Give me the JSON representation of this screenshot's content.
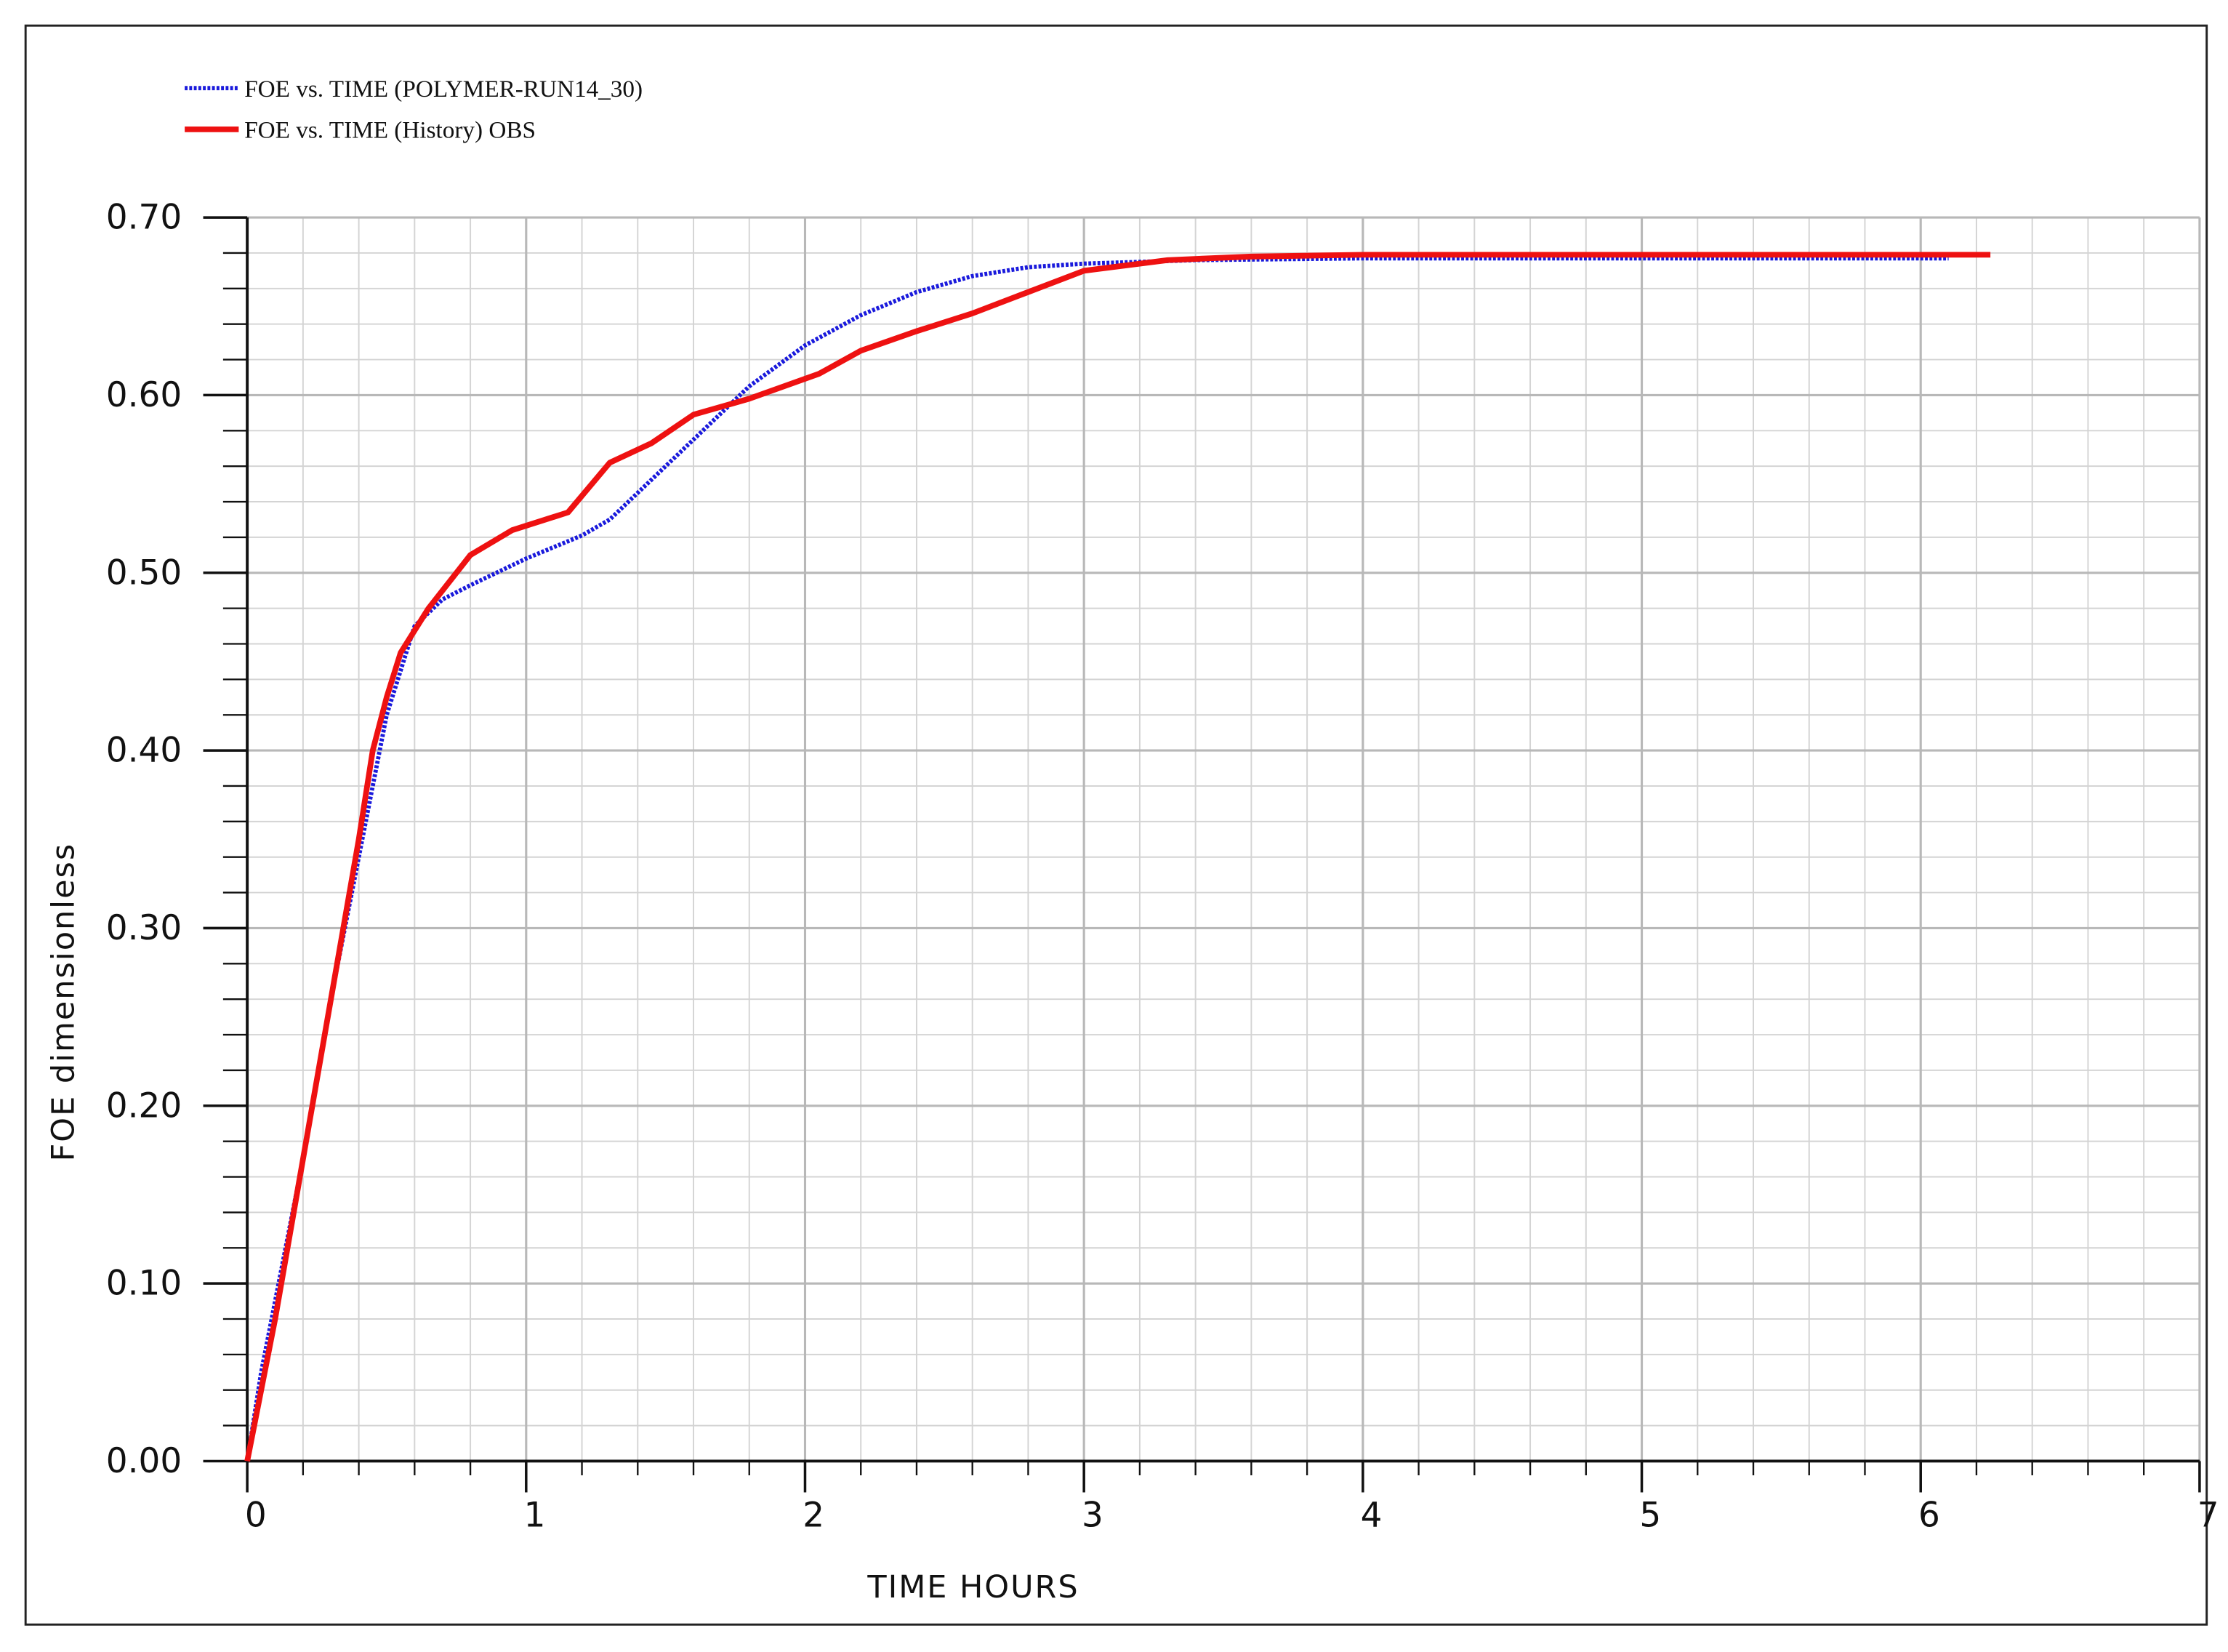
{
  "chart_data": {
    "type": "line",
    "x_label": "TIME  HOURS",
    "y_label": "FOE  dimensionless",
    "xlim": [
      0,
      7
    ],
    "xticks": [
      0,
      1,
      2,
      3,
      4,
      5,
      6,
      7
    ],
    "ylim": [
      0,
      0.7
    ],
    "yticks": [
      {
        "value": 0,
        "label": "0.00"
      },
      {
        "value": 0.1,
        "label": "0.10"
      },
      {
        "value": 0.2,
        "label": "0.20"
      },
      {
        "value": 0.3,
        "label": "0.30"
      },
      {
        "value": 0.4,
        "label": "0.40"
      },
      {
        "value": 0.5,
        "label": "0.50"
      },
      {
        "value": 0.6,
        "label": "0.60"
      },
      {
        "value": 0.7,
        "label": "0.70"
      }
    ],
    "grid": true,
    "legend": "top-left",
    "series": [
      {
        "name": "FOE vs. TIME (POLYMER-RUN14_30)",
        "color": "#1a1adc",
        "style": "dotted",
        "x": [
          0,
          0.05,
          0.1,
          0.2,
          0.3,
          0.4,
          0.5,
          0.6,
          0.7,
          0.8,
          1.0,
          1.2,
          1.3,
          1.4,
          1.6,
          1.8,
          2.0,
          2.2,
          2.4,
          2.6,
          2.8,
          3.0,
          3.4,
          4.0,
          5.0,
          6.1
        ],
        "values": [
          0,
          0.05,
          0.09,
          0.17,
          0.26,
          0.34,
          0.42,
          0.47,
          0.485,
          0.493,
          0.508,
          0.521,
          0.53,
          0.545,
          0.575,
          0.605,
          0.628,
          0.645,
          0.658,
          0.667,
          0.672,
          0.674,
          0.676,
          0.677,
          0.677,
          0.677
        ]
      },
      {
        "name": "FOE vs. TIME (History) OBS",
        "color": "#ee1111",
        "style": "solid",
        "x": [
          0,
          0.1,
          0.2,
          0.3,
          0.4,
          0.45,
          0.5,
          0.55,
          0.65,
          0.8,
          0.95,
          1.15,
          1.3,
          1.45,
          1.6,
          1.8,
          2.05,
          2.2,
          2.4,
          2.6,
          2.8,
          3.0,
          3.3,
          3.6,
          4.0,
          5.0,
          6.25
        ],
        "values": [
          0,
          0.08,
          0.17,
          0.26,
          0.35,
          0.4,
          0.43,
          0.455,
          0.48,
          0.51,
          0.524,
          0.534,
          0.562,
          0.573,
          0.589,
          0.598,
          0.612,
          0.625,
          0.636,
          0.646,
          0.658,
          0.67,
          0.676,
          0.678,
          0.679,
          0.679,
          0.679
        ]
      }
    ]
  }
}
